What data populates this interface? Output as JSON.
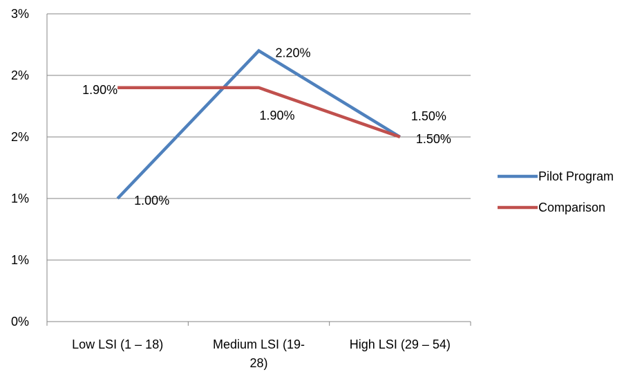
{
  "chart_data": {
    "type": "line",
    "categories": [
      "Low LSI (1 – 18)",
      "Medium LSI (19-28)",
      "High LSI (29 – 54)"
    ],
    "category_label_lines": [
      [
        "Low LSI (1 – 18)"
      ],
      [
        "Medium LSI (19-",
        "28)"
      ],
      [
        "High LSI (29 – 54)"
      ]
    ],
    "y_tick_labels": [
      "0%",
      "1%",
      "1%",
      "2%",
      "2%",
      "3%"
    ],
    "ylim": [
      0,
      2.5
    ],
    "y_tick_step": 0.5,
    "grid": true,
    "legend_position": "right",
    "series": [
      {
        "name": "Pilot Program",
        "color": "#4F81BD",
        "values": [
          1.0,
          2.2,
          1.5
        ],
        "labels": [
          "1.00%",
          "2.20%",
          "1.50%"
        ]
      },
      {
        "name": "Comparison",
        "color": "#C0504D",
        "values": [
          1.9,
          1.9,
          1.5
        ],
        "labels": [
          "1.90%",
          "1.90%",
          "1.50%"
        ]
      }
    ]
  }
}
